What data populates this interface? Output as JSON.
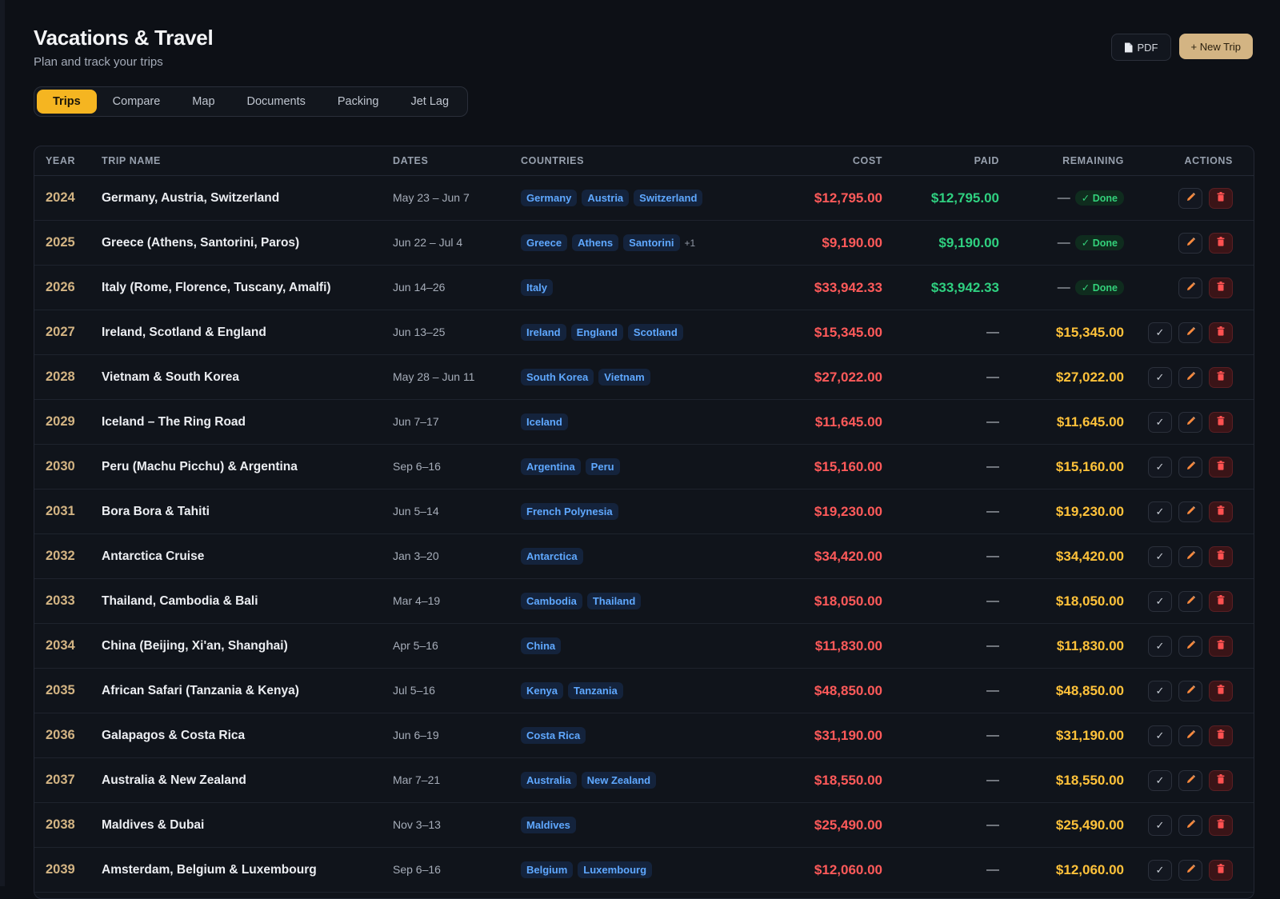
{
  "header": {
    "title": "Vacations & Travel",
    "subtitle": "Plan and track your trips",
    "pdf_label": "PDF",
    "new_trip_label": "+ New Trip"
  },
  "tabs": [
    {
      "label": "Trips",
      "active": true
    },
    {
      "label": "Compare",
      "active": false
    },
    {
      "label": "Map",
      "active": false
    },
    {
      "label": "Documents",
      "active": false
    },
    {
      "label": "Packing",
      "active": false
    },
    {
      "label": "Jet Lag",
      "active": false
    }
  ],
  "table": {
    "columns": [
      "YEAR",
      "TRIP NAME",
      "DATES",
      "COUNTRIES",
      "COST",
      "PAID",
      "REMAINING",
      "ACTIONS"
    ],
    "done_label": "✓ Done",
    "dash": "—",
    "rows": [
      {
        "year": "2024",
        "name": "Germany, Austria, Switzerland",
        "dates": "May 23 – Jun 7",
        "countries": [
          "Germany",
          "Austria",
          "Switzerland"
        ],
        "more": "",
        "cost": "$12,795.00",
        "paid": "$12,795.00",
        "remaining": "",
        "done": true
      },
      {
        "year": "2025",
        "name": "Greece (Athens, Santorini, Paros)",
        "dates": "Jun 22 – Jul 4",
        "countries": [
          "Greece",
          "Athens",
          "Santorini"
        ],
        "more": "+1",
        "cost": "$9,190.00",
        "paid": "$9,190.00",
        "remaining": "",
        "done": true
      },
      {
        "year": "2026",
        "name": "Italy (Rome, Florence, Tuscany, Amalfi)",
        "dates": "Jun 14–26",
        "countries": [
          "Italy"
        ],
        "more": "",
        "cost": "$33,942.33",
        "paid": "$33,942.33",
        "remaining": "",
        "done": true
      },
      {
        "year": "2027",
        "name": "Ireland, Scotland & England",
        "dates": "Jun 13–25",
        "countries": [
          "Ireland",
          "England",
          "Scotland"
        ],
        "more": "",
        "cost": "$15,345.00",
        "paid": "",
        "remaining": "$15,345.00",
        "done": false
      },
      {
        "year": "2028",
        "name": "Vietnam & South Korea",
        "dates": "May 28 – Jun 11",
        "countries": [
          "South Korea",
          "Vietnam"
        ],
        "more": "",
        "cost": "$27,022.00",
        "paid": "",
        "remaining": "$27,022.00",
        "done": false
      },
      {
        "year": "2029",
        "name": "Iceland – The Ring Road",
        "dates": "Jun 7–17",
        "countries": [
          "Iceland"
        ],
        "more": "",
        "cost": "$11,645.00",
        "paid": "",
        "remaining": "$11,645.00",
        "done": false
      },
      {
        "year": "2030",
        "name": "Peru (Machu Picchu) & Argentina",
        "dates": "Sep 6–16",
        "countries": [
          "Argentina",
          "Peru"
        ],
        "more": "",
        "cost": "$15,160.00",
        "paid": "",
        "remaining": "$15,160.00",
        "done": false
      },
      {
        "year": "2031",
        "name": "Bora Bora & Tahiti",
        "dates": "Jun 5–14",
        "countries": [
          "French Polynesia"
        ],
        "more": "",
        "cost": "$19,230.00",
        "paid": "",
        "remaining": "$19,230.00",
        "done": false
      },
      {
        "year": "2032",
        "name": "Antarctica Cruise",
        "dates": "Jan 3–20",
        "countries": [
          "Antarctica"
        ],
        "more": "",
        "cost": "$34,420.00",
        "paid": "",
        "remaining": "$34,420.00",
        "done": false
      },
      {
        "year": "2033",
        "name": "Thailand, Cambodia & Bali",
        "dates": "Mar 4–19",
        "countries": [
          "Cambodia",
          "Thailand"
        ],
        "more": "",
        "cost": "$18,050.00",
        "paid": "",
        "remaining": "$18,050.00",
        "done": false
      },
      {
        "year": "2034",
        "name": "China (Beijing, Xi'an, Shanghai)",
        "dates": "Apr 5–16",
        "countries": [
          "China"
        ],
        "more": "",
        "cost": "$11,830.00",
        "paid": "",
        "remaining": "$11,830.00",
        "done": false
      },
      {
        "year": "2035",
        "name": "African Safari (Tanzania & Kenya)",
        "dates": "Jul 5–16",
        "countries": [
          "Kenya",
          "Tanzania"
        ],
        "more": "",
        "cost": "$48,850.00",
        "paid": "",
        "remaining": "$48,850.00",
        "done": false
      },
      {
        "year": "2036",
        "name": "Galapagos & Costa Rica",
        "dates": "Jun 6–19",
        "countries": [
          "Costa Rica"
        ],
        "more": "",
        "cost": "$31,190.00",
        "paid": "",
        "remaining": "$31,190.00",
        "done": false
      },
      {
        "year": "2037",
        "name": "Australia & New Zealand",
        "dates": "Mar 7–21",
        "countries": [
          "Australia",
          "New Zealand"
        ],
        "more": "",
        "cost": "$18,550.00",
        "paid": "",
        "remaining": "$18,550.00",
        "done": false
      },
      {
        "year": "2038",
        "name": "Maldives & Dubai",
        "dates": "Nov 3–13",
        "countries": [
          "Maldives"
        ],
        "more": "",
        "cost": "$25,490.00",
        "paid": "",
        "remaining": "$25,490.00",
        "done": false
      },
      {
        "year": "2039",
        "name": "Amsterdam, Belgium & Luxembourg",
        "dates": "Sep 6–16",
        "countries": [
          "Belgium",
          "Luxembourg"
        ],
        "more": "",
        "cost": "$12,060.00",
        "paid": "",
        "remaining": "$12,060.00",
        "done": false
      }
    ]
  },
  "icons": {
    "pdf": "document-icon",
    "mark_paid": "checkmark-icon",
    "edit": "pencil-icon",
    "delete": "trash-icon"
  },
  "colors": {
    "accent": "#f5b521",
    "cost": "#ff5a5a",
    "paid": "#2fd080",
    "remaining": "#ffc23a",
    "year": "#d3b483",
    "chip": "#5fa8ff"
  }
}
